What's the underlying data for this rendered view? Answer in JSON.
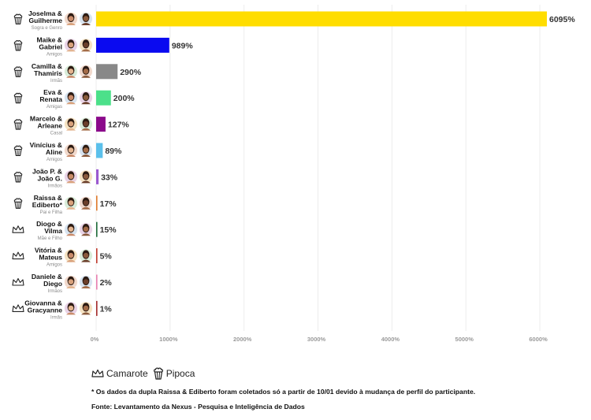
{
  "chart_data": {
    "type": "bar",
    "orientation": "horizontal",
    "xlim": [
      0,
      6200
    ],
    "x_ticks": [
      0,
      1000,
      2000,
      3000,
      4000,
      5000,
      6000
    ],
    "x_tick_labels": [
      "0%",
      "1000%",
      "2000%",
      "3000%",
      "4000%",
      "5000%",
      "6000%"
    ],
    "grid": true,
    "legend_placement": "bottom-left",
    "rows": [
      {
        "names": "Joselma & Guilherme",
        "relation": "Sogra e Genro",
        "group": "pipoca",
        "value": 6095,
        "label": "6095%",
        "color": "#FFDD00"
      },
      {
        "names": "Maike & Gabriel",
        "relation": "Amigos",
        "group": "pipoca",
        "value": 989,
        "label": "989%",
        "color": "#0A0AF0"
      },
      {
        "names": "Camilla & Thamiris",
        "relation": "Irmãs",
        "group": "pipoca",
        "value": 290,
        "label": "290%",
        "color": "#888888"
      },
      {
        "names": "Eva & Renata",
        "relation": "Amigas",
        "group": "pipoca",
        "value": 200,
        "label": "200%",
        "color": "#4CE08A"
      },
      {
        "names": "Marcelo & Arleane",
        "relation": "Casal",
        "group": "pipoca",
        "value": 127,
        "label": "127%",
        "color": "#8B0A8B"
      },
      {
        "names": "Vinícius & Aline",
        "relation": "Amigos",
        "group": "pipoca",
        "value": 89,
        "label": "89%",
        "color": "#5BC0EB"
      },
      {
        "names": "João P. & João G.",
        "relation": "Irmãos",
        "group": "pipoca",
        "value": 33,
        "label": "33%",
        "color": "#9B59D0"
      },
      {
        "names": "Raissa & Ediberto*",
        "relation": "Pai e Filha",
        "group": "pipoca",
        "value": 17,
        "label": "17%",
        "color": "#E07A2B"
      },
      {
        "names": "Diogo & Vilma",
        "relation": "Mãe e Filho",
        "group": "camarote",
        "value": 15,
        "label": "15%",
        "color": "#1E6B3A"
      },
      {
        "names": "Vitória & Mateus",
        "relation": "Amigos",
        "group": "camarote",
        "value": 5,
        "label": "5%",
        "color": "#C0392B"
      },
      {
        "names": "Daniele & Diego",
        "relation": "Irmãos",
        "group": "camarote",
        "value": 2,
        "label": "2%",
        "color": "#E87FB0"
      },
      {
        "names": "Giovanna & Gracyanne",
        "relation": "Irmãs",
        "group": "camarote",
        "value": 1,
        "label": "1%",
        "color": "#A52A2A"
      }
    ]
  },
  "legend": {
    "camarote_label": "Camarote",
    "pipoca_label": "Pipoca"
  },
  "footnote": "* Os dados da dupla Raissa & Ediberto foram coletados só a partir de 10/01 devido à mudança de perfil do participante.",
  "source": "Fonte: Levantamento da Nexus - Pesquisa e Inteligência de Dados",
  "colors": {
    "grid": "#ececec",
    "tick_text": "#9a9a9a",
    "name_text": "#111111",
    "relation_text": "#8a8a8a",
    "avatar_skin_palette": [
      "#c98b6a",
      "#8a5a3c",
      "#d9a27c",
      "#6b3f2a",
      "#e3b48f",
      "#a36b47"
    ]
  }
}
